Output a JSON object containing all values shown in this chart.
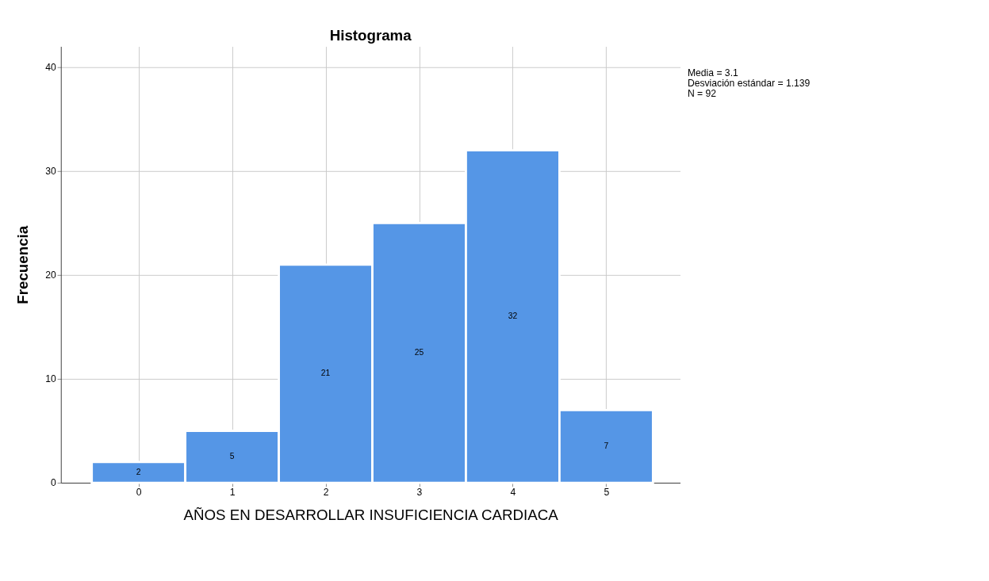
{
  "chart_data": {
    "type": "histogram",
    "title": "Histograma",
    "xlabel": "AÑOS EN DESARROLLAR INSUFICIENCIA CARDIACA",
    "ylabel": "Frecuencia",
    "bins": [
      -0.5,
      0.5,
      1.5,
      2.5,
      3.5,
      4.5,
      5.5
    ],
    "values": [
      2,
      5,
      21,
      25,
      32,
      7
    ],
    "color": "#5596e6",
    "xlim": [
      -0.83,
      5.79
    ],
    "xticks": [
      0,
      1,
      2,
      3,
      4,
      5
    ],
    "ylim": [
      0,
      42
    ],
    "yticks": [
      0,
      10,
      20,
      30,
      40
    ],
    "grid": true,
    "data_labels": true,
    "annotations": [
      "Media = 3.1",
      "Desviación estándar = 1.139",
      "N = 92"
    ]
  }
}
